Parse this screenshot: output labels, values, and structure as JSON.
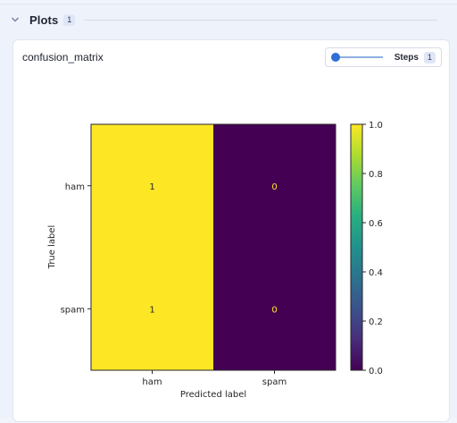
{
  "section": {
    "title": "Plots",
    "count": "1"
  },
  "card": {
    "title": "confusion_matrix"
  },
  "steps": {
    "label": "Steps",
    "value": "1"
  },
  "icons": {
    "collapse": "chevron-down-icon"
  },
  "chart_data": {
    "type": "heatmap",
    "x_categories": [
      "ham",
      "spam"
    ],
    "y_categories": [
      "ham",
      "spam"
    ],
    "values": [
      [
        1,
        0
      ],
      [
        1,
        0
      ]
    ],
    "xlabel": "Predicted label",
    "ylabel": "True label",
    "colormap": "viridis",
    "colorbar": {
      "min": 0.0,
      "max": 1.0,
      "ticks": [
        "0.0",
        "0.2",
        "0.4",
        "0.6",
        "0.8",
        "1.0"
      ]
    },
    "cell_text_colors": {
      "on_high": "#262626",
      "on_low": "#fde725"
    },
    "low_color": "#440154",
    "high_color": "#fde725"
  }
}
